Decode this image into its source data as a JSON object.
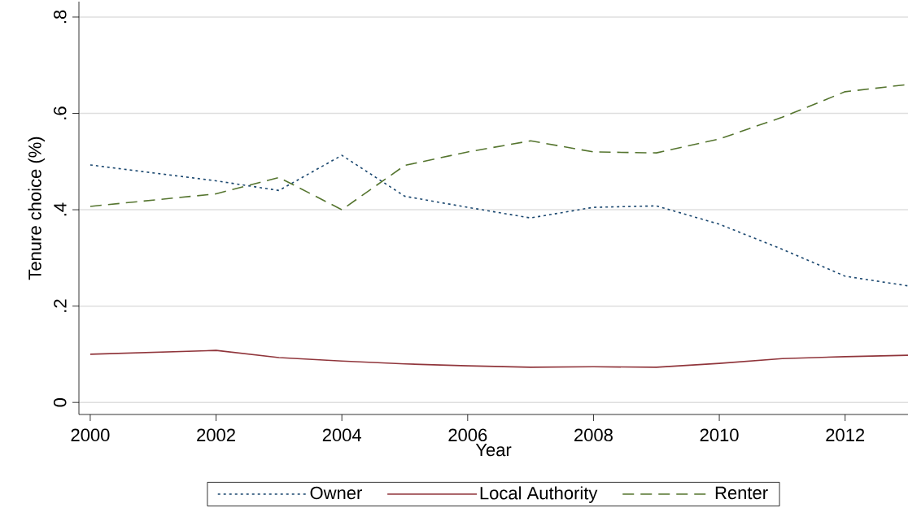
{
  "chart_data": {
    "type": "line",
    "xlabel": "Year",
    "ylabel": "Tenure choice (%)",
    "x": [
      2000,
      2002,
      2003,
      2004,
      2005,
      2006,
      2007,
      2008,
      2009,
      2010,
      2011,
      2012,
      2013
    ],
    "series": [
      {
        "name": "Owner",
        "color": "#1a476f",
        "line_style": "dotted",
        "values": [
          0.493,
          0.46,
          0.44,
          0.513,
          0.428,
          0.405,
          0.383,
          0.405,
          0.408,
          0.37,
          0.318,
          0.262,
          0.242
        ]
      },
      {
        "name": "Local Authority",
        "color": "#90353b",
        "line_style": "solid",
        "values": [
          0.1,
          0.108,
          0.093,
          0.086,
          0.08,
          0.076,
          0.073,
          0.074,
          0.073,
          0.081,
          0.091,
          0.095,
          0.098
        ]
      },
      {
        "name": "Renter",
        "color": "#55752f",
        "line_style": "dashed",
        "values": [
          0.407,
          0.433,
          0.467,
          0.4,
          0.492,
          0.52,
          0.543,
          0.52,
          0.518,
          0.547,
          0.592,
          0.645,
          0.66
        ]
      }
    ],
    "xlim": [
      1999.82,
      2013
    ],
    "ylim": [
      -0.025,
      0.832
    ],
    "xticks": [
      2000,
      2002,
      2004,
      2006,
      2008,
      2010,
      2012
    ],
    "yticks": [
      0,
      {
        "value": 0.2,
        "label": ".2"
      },
      {
        "value": 0.4,
        "label": ".4"
      },
      {
        "value": 0.6,
        "label": ".6"
      },
      {
        "value": 0.8,
        "label": ".8"
      }
    ],
    "grid": "y",
    "legend": "bottom",
    "marker": "none"
  }
}
